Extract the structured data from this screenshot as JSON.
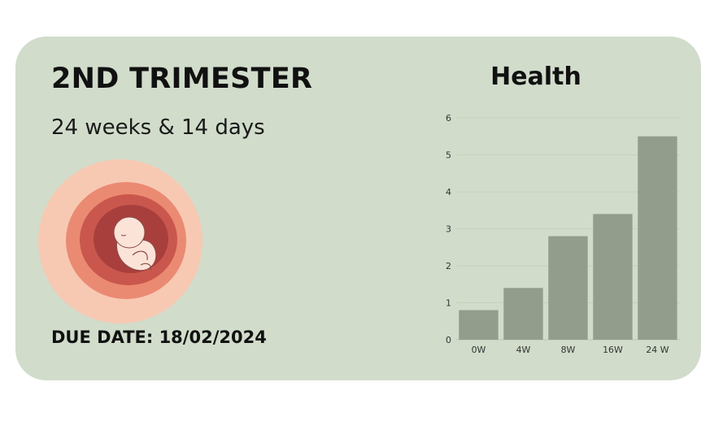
{
  "card": {
    "title": "2ND TRIMESTER",
    "subtitle": "24 weeks & 14 days",
    "due_date": "DUE DATE: 18/02/2024",
    "illustration_icon": "fetus-in-womb-icon"
  },
  "colors": {
    "card_background": "#d1dccb",
    "bar": "#939d8b",
    "womb_outer": "#f7c9b3",
    "womb_mid": "#eb8a73",
    "womb_inner": "#c9574d",
    "womb_core": "#a93f3d",
    "fetus": "#fbe3d8"
  },
  "chart_data": {
    "type": "bar",
    "title": "Health",
    "categories": [
      "0W",
      "4W",
      "8W",
      "16W",
      "24 W"
    ],
    "values": [
      0.8,
      1.4,
      2.8,
      3.4,
      5.5
    ],
    "yticks": [
      0,
      1,
      2,
      3,
      4,
      5,
      6
    ],
    "ylim": [
      0,
      6
    ],
    "grid": true
  }
}
